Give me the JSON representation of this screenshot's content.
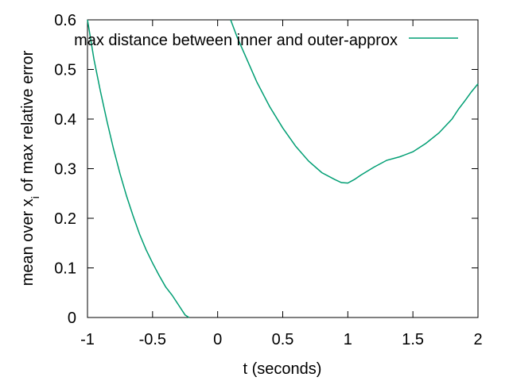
{
  "chart_data": {
    "type": "line",
    "title": "",
    "xlabel": "t (seconds)",
    "ylabel_main": "mean over x",
    "ylabel_sub": "i",
    "ylabel_rest": " of max relative error",
    "xlim": [
      -1,
      2
    ],
    "ylim": [
      0,
      0.6
    ],
    "xticks": [
      "-1",
      "-0.5",
      "0",
      "0.5",
      "1",
      "1.5",
      "2"
    ],
    "yticks": [
      "0",
      "0.1",
      "0.2",
      "0.3",
      "0.4",
      "0.5",
      "0.6"
    ],
    "grid": false,
    "legend_position": "top-right",
    "series": [
      {
        "name": "max distance between inner and outer-approx",
        "color": "#009e73",
        "segments": [
          [
            [
              -1.0,
              0.6
            ],
            [
              -0.95,
              0.52
            ],
            [
              -0.9,
              0.455
            ],
            [
              -0.85,
              0.395
            ],
            [
              -0.8,
              0.34
            ],
            [
              -0.75,
              0.29
            ],
            [
              -0.7,
              0.245
            ],
            [
              -0.65,
              0.205
            ],
            [
              -0.6,
              0.168
            ],
            [
              -0.55,
              0.137
            ],
            [
              -0.5,
              0.11
            ],
            [
              -0.45,
              0.085
            ],
            [
              -0.4,
              0.062
            ],
            [
              -0.35,
              0.045
            ],
            [
              -0.3,
              0.025
            ],
            [
              -0.25,
              0.005
            ],
            [
              -0.22,
              0.0
            ]
          ],
          [
            [
              0.1,
              0.6
            ],
            [
              0.15,
              0.565
            ],
            [
              0.2,
              0.535
            ],
            [
              0.3,
              0.475
            ],
            [
              0.4,
              0.425
            ],
            [
              0.5,
              0.382
            ],
            [
              0.6,
              0.345
            ],
            [
              0.7,
              0.315
            ],
            [
              0.8,
              0.292
            ],
            [
              0.9,
              0.278
            ],
            [
              0.95,
              0.272
            ],
            [
              1.0,
              0.271
            ],
            [
              1.05,
              0.278
            ],
            [
              1.1,
              0.287
            ],
            [
              1.2,
              0.303
            ],
            [
              1.3,
              0.317
            ],
            [
              1.4,
              0.324
            ],
            [
              1.5,
              0.334
            ],
            [
              1.6,
              0.351
            ],
            [
              1.7,
              0.372
            ],
            [
              1.8,
              0.4
            ],
            [
              1.85,
              0.42
            ],
            [
              1.9,
              0.437
            ],
            [
              1.95,
              0.455
            ],
            [
              2.0,
              0.471
            ]
          ]
        ]
      }
    ]
  }
}
